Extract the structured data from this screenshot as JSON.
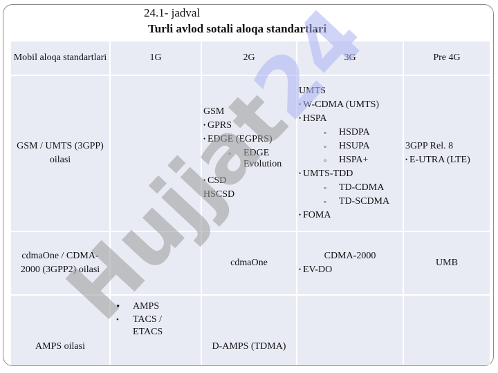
{
  "caption": "24.1- jadval",
  "title": "Turli avlod sotali aloqa standartlari",
  "watermark": "Hujjat24",
  "header": {
    "col0": "Mobil aloqa standartlari",
    "col1": "1G",
    "col2": "2G",
    "col3": "3G",
    "col4": "Pre 4G"
  },
  "rows": {
    "gsm": {
      "family": "GSM / UMTS (3GPP) oilasi",
      "g2": {
        "l1": "GSM",
        "l2": "GPRS",
        "l3": "EDGE (EGPRS)",
        "l4": "EDGE Evolution",
        "l5": "CSD",
        "l6": "HSCSD"
      },
      "g3": {
        "l1": "UMTS",
        "l2": "W-CDMA (UMTS)",
        "l3": "HSPA",
        "l4": "HSDPA",
        "l5": "HSUPA",
        "l6": "HSPA+",
        "l7": "UMTS-TDD",
        "l8": "TD-CDMA",
        "l9": "TD-SCDMA",
        "l10": "FOMA"
      },
      "g4": {
        "l1": "3GPP Rel. 8",
        "l2": "E-UTRA (LTE)"
      }
    },
    "cdma": {
      "family": "cdmaOne / CDMA-2000 (3GPP2) oilasi",
      "g2": "cdmaOne",
      "g3": {
        "l1": "CDMA-2000",
        "l2": "EV-DO"
      },
      "g4": "UMB"
    },
    "amps": {
      "family": "AMPS oilasi",
      "g1": {
        "l1": "AMPS",
        "l2": "TACS / ETACS"
      },
      "g2": "D-AMPS (TDMA)"
    }
  },
  "colors": {
    "cell_bg": "#e9ebf4",
    "watermark_blue": "#aab2f2",
    "watermark_gray": "#9a9a9a"
  }
}
